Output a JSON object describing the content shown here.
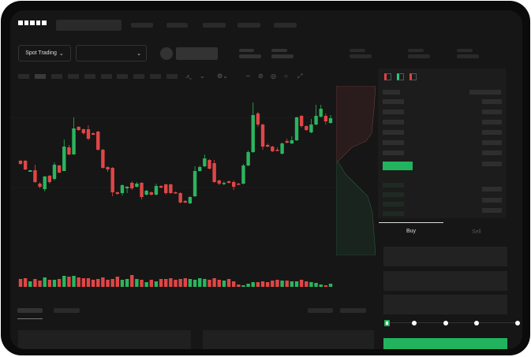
{
  "brand": {
    "logo": "OKX"
  },
  "header": {
    "nav_count": 5
  },
  "market": {
    "mode_label": "Spot Trading",
    "mode_icon": "chevron-down-icon",
    "pair_icon": "chevron-down-icon"
  },
  "toolbar": {
    "icons": [
      "indicator-icon",
      "chart-type-icon",
      "settings-icon",
      "line-tool-icon",
      "pen-icon",
      "target-icon",
      "circle-icon",
      "fullscreen-icon"
    ]
  },
  "colors": {
    "up": "#2bb55f",
    "down": "#e04646",
    "accent": "#22b35e"
  },
  "chart_data": {
    "type": "candlestick",
    "candles": [
      [
        97,
        93,
        98,
        92
      ],
      [
        97,
        86,
        98,
        85
      ],
      [
        83,
        85,
        85,
        83
      ],
      [
        85,
        70,
        92,
        69
      ],
      [
        68,
        64,
        70,
        62
      ],
      [
        61,
        77,
        78,
        58
      ],
      [
        78,
        70,
        79,
        68
      ],
      [
        74,
        92,
        95,
        72
      ],
      [
        91,
        82,
        92,
        81
      ],
      [
        84,
        115,
        124,
        84
      ],
      [
        114,
        105,
        117,
        104
      ],
      [
        105,
        138,
        152,
        105
      ],
      [
        140,
        136,
        141,
        135
      ],
      [
        137,
        132,
        138,
        130
      ],
      [
        137,
        125,
        142,
        123
      ],
      [
        132,
        130,
        133,
        130
      ],
      [
        134,
        111,
        135,
        110
      ],
      [
        111,
        88,
        112,
        87
      ],
      [
        89,
        86,
        90,
        83
      ],
      [
        88,
        57,
        89,
        52
      ],
      [
        57,
        55,
        58,
        54
      ],
      [
        56,
        66,
        67,
        53
      ],
      [
        62,
        64,
        65,
        56
      ],
      [
        69,
        62,
        71,
        60
      ],
      [
        64,
        68,
        70,
        63
      ],
      [
        69,
        51,
        70,
        48
      ],
      [
        54,
        59,
        60,
        53
      ],
      [
        57,
        54,
        58,
        53
      ],
      [
        54,
        65,
        68,
        53
      ],
      [
        65,
        63,
        66,
        62
      ],
      [
        67,
        56,
        68,
        54
      ],
      [
        67,
        56,
        68,
        55
      ],
      [
        57,
        56,
        58,
        55
      ],
      [
        56,
        44,
        57,
        43
      ],
      [
        46,
        44,
        47,
        43
      ],
      [
        43,
        51,
        52,
        42
      ],
      [
        52,
        84,
        90,
        51
      ],
      [
        84,
        89,
        91,
        83
      ],
      [
        90,
        100,
        105,
        89
      ],
      [
        98,
        87,
        99,
        86
      ],
      [
        94,
        70,
        98,
        69
      ],
      [
        72,
        68,
        73,
        66
      ],
      [
        68,
        69,
        71,
        66
      ],
      [
        71,
        69,
        72,
        68
      ],
      [
        70,
        64,
        72,
        60
      ],
      [
        68,
        67,
        69,
        66
      ],
      [
        68,
        91,
        93,
        67
      ],
      [
        91,
        108,
        110,
        90
      ],
      [
        108,
        155,
        171,
        107
      ],
      [
        157,
        143,
        159,
        140
      ],
      [
        143,
        115,
        144,
        111
      ],
      [
        117,
        115,
        119,
        114
      ],
      [
        115,
        109,
        116,
        108
      ],
      [
        111,
        110,
        114,
        109
      ],
      [
        106,
        119,
        120,
        105
      ],
      [
        122,
        120,
        125,
        119
      ],
      [
        119,
        123,
        128,
        118
      ],
      [
        123,
        152,
        153,
        122
      ],
      [
        154,
        141,
        155,
        139
      ],
      [
        141,
        136,
        142,
        135
      ],
      [
        133,
        143,
        150,
        132
      ],
      [
        143,
        154,
        168,
        142
      ],
      [
        153,
        163,
        168,
        152
      ],
      [
        154,
        147,
        157,
        143
      ],
      [
        145,
        151,
        155,
        144
      ]
    ],
    "volume": [
      10,
      11,
      7,
      10,
      8,
      12,
      9,
      9,
      10,
      14,
      13,
      14,
      12,
      11,
      11,
      9,
      10,
      12,
      9,
      10,
      13,
      9,
      10,
      15,
      10,
      9,
      6,
      9,
      7,
      10,
      10,
      11,
      9,
      10,
      11,
      10,
      9,
      11,
      10,
      9,
      11,
      9,
      8,
      10,
      7,
      3,
      2,
      4,
      6,
      6,
      7,
      6,
      8,
      9,
      8,
      8,
      7,
      7,
      9,
      7,
      6,
      5,
      3,
      2,
      4
    ]
  },
  "order_form": {
    "buy_label": "Buy",
    "sell_label": "Sell",
    "leverage_steps": 5,
    "selected_step": 0
  }
}
